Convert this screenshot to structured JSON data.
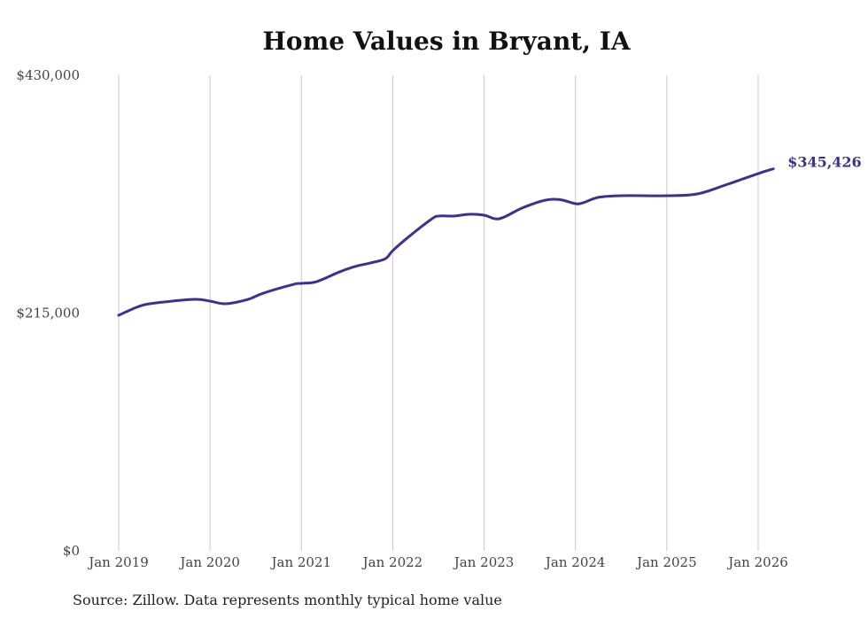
{
  "chart_data": {
    "type": "line",
    "title": "Home Values in Bryant, IA",
    "source": "Source: Zillow. Data represents monthly typical home value",
    "xlabel": "",
    "ylabel": "",
    "ylim": [
      0,
      430000
    ],
    "y_ticks": [
      {
        "value": 0,
        "label": "$0"
      },
      {
        "value": 215000,
        "label": "$215,000"
      },
      {
        "value": 430000,
        "label": "$430,000"
      }
    ],
    "x_ticks": [
      {
        "month": 0,
        "label": "Jan 2019"
      },
      {
        "month": 12,
        "label": "Jan 2020"
      },
      {
        "month": 24,
        "label": "Jan 2021"
      },
      {
        "month": 36,
        "label": "Jan 2022"
      },
      {
        "month": 48,
        "label": "Jan 2023"
      },
      {
        "month": 60,
        "label": "Jan 2024"
      },
      {
        "month": 72,
        "label": "Jan 2025"
      },
      {
        "month": 84,
        "label": "Jan 2026"
      }
    ],
    "xlim": [
      0,
      86
    ],
    "grid": "vertical",
    "line_color": "#3b3290",
    "series": [
      {
        "name": "Typical home value",
        "x": [
          0,
          3,
          6,
          10,
          12,
          14,
          17,
          19,
          23,
          24,
          26,
          29,
          31,
          33,
          35,
          36,
          38,
          41,
          42,
          44,
          46,
          48,
          50,
          53,
          56,
          58,
          60,
          61,
          63,
          66,
          72,
          76,
          80,
          84,
          86
        ],
        "values": [
          213000,
          221800,
          225000,
          227400,
          225800,
          223400,
          227400,
          233000,
          241000,
          241800,
          243400,
          252200,
          257000,
          260200,
          264000,
          271400,
          283400,
          299500,
          302700,
          302700,
          304300,
          303500,
          300300,
          310000,
          317000,
          317500,
          313900,
          314700,
          319600,
          321100,
          321100,
          322700,
          331500,
          341100,
          345426
        ]
      }
    ],
    "end_label": "$345,426"
  }
}
